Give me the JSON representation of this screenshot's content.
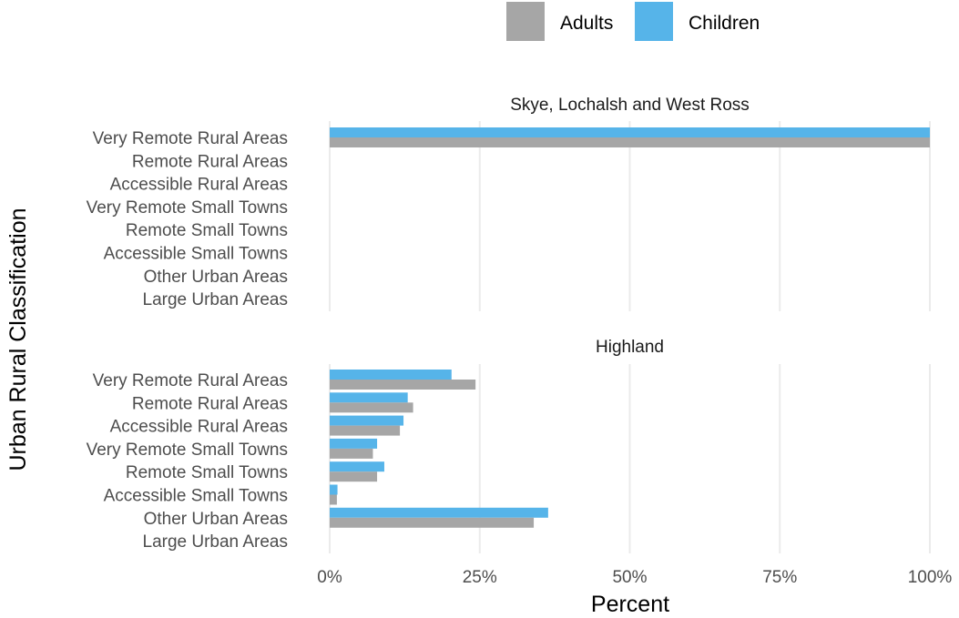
{
  "chart_data": {
    "type": "bar",
    "orientation": "horizontal",
    "xlabel": "Percent",
    "ylabel": "Urban Rural Classification",
    "xlim": [
      0,
      100
    ],
    "xticks": [
      "0%",
      "25%",
      "50%",
      "75%",
      "100%"
    ],
    "grid": true,
    "legend_position": "top",
    "categories": [
      "Very Remote Rural Areas",
      "Remote Rural Areas",
      "Accessible Rural Areas",
      "Very Remote Small Towns",
      "Remote Small Towns",
      "Accessible Small Towns",
      "Other Urban Areas",
      "Large Urban Areas"
    ],
    "series_info": [
      {
        "name": "Adults",
        "color": "#a6a6a6"
      },
      {
        "name": "Children",
        "color": "#56b4e9"
      }
    ],
    "panels": [
      {
        "title": "Skye, Lochalsh and West Ross",
        "series": [
          {
            "name": "Adults",
            "values": [
              100,
              0,
              0,
              0,
              0,
              0,
              0,
              0
            ]
          },
          {
            "name": "Children",
            "values": [
              100,
              0,
              0,
              0,
              0,
              0,
              0,
              0
            ]
          }
        ]
      },
      {
        "title": "Highland",
        "series": [
          {
            "name": "Adults",
            "values": [
              24.3,
              13.9,
              11.7,
              7.2,
              7.9,
              1.2,
              34.0,
              0
            ]
          },
          {
            "name": "Children",
            "values": [
              20.3,
              13.0,
              12.3,
              7.9,
              9.1,
              1.3,
              36.4,
              0
            ]
          }
        ]
      }
    ]
  }
}
